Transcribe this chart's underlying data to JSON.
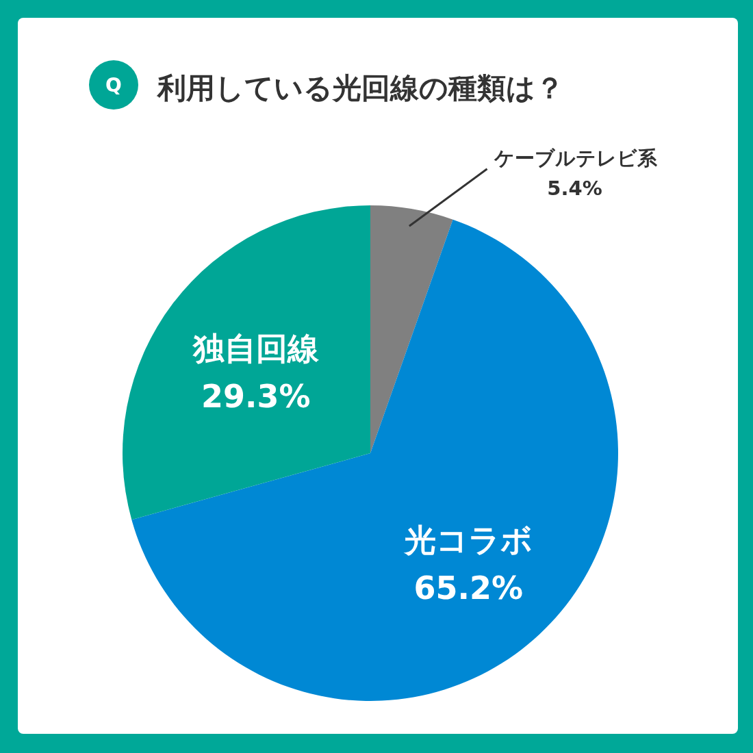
{
  "chart_data": {
    "type": "pie",
    "title": "利用している光回線の種類は？",
    "annotations": [
      "Q"
    ],
    "categories": [
      "ケーブルテレビ系",
      "光コラボ",
      "独自回線"
    ],
    "values": [
      5.4,
      65.2,
      29.3
    ],
    "value_labels": [
      "5.4%",
      "65.2%",
      "29.3%"
    ],
    "colors": [
      "#808080",
      "#0088d4",
      "#00a696"
    ]
  }
}
